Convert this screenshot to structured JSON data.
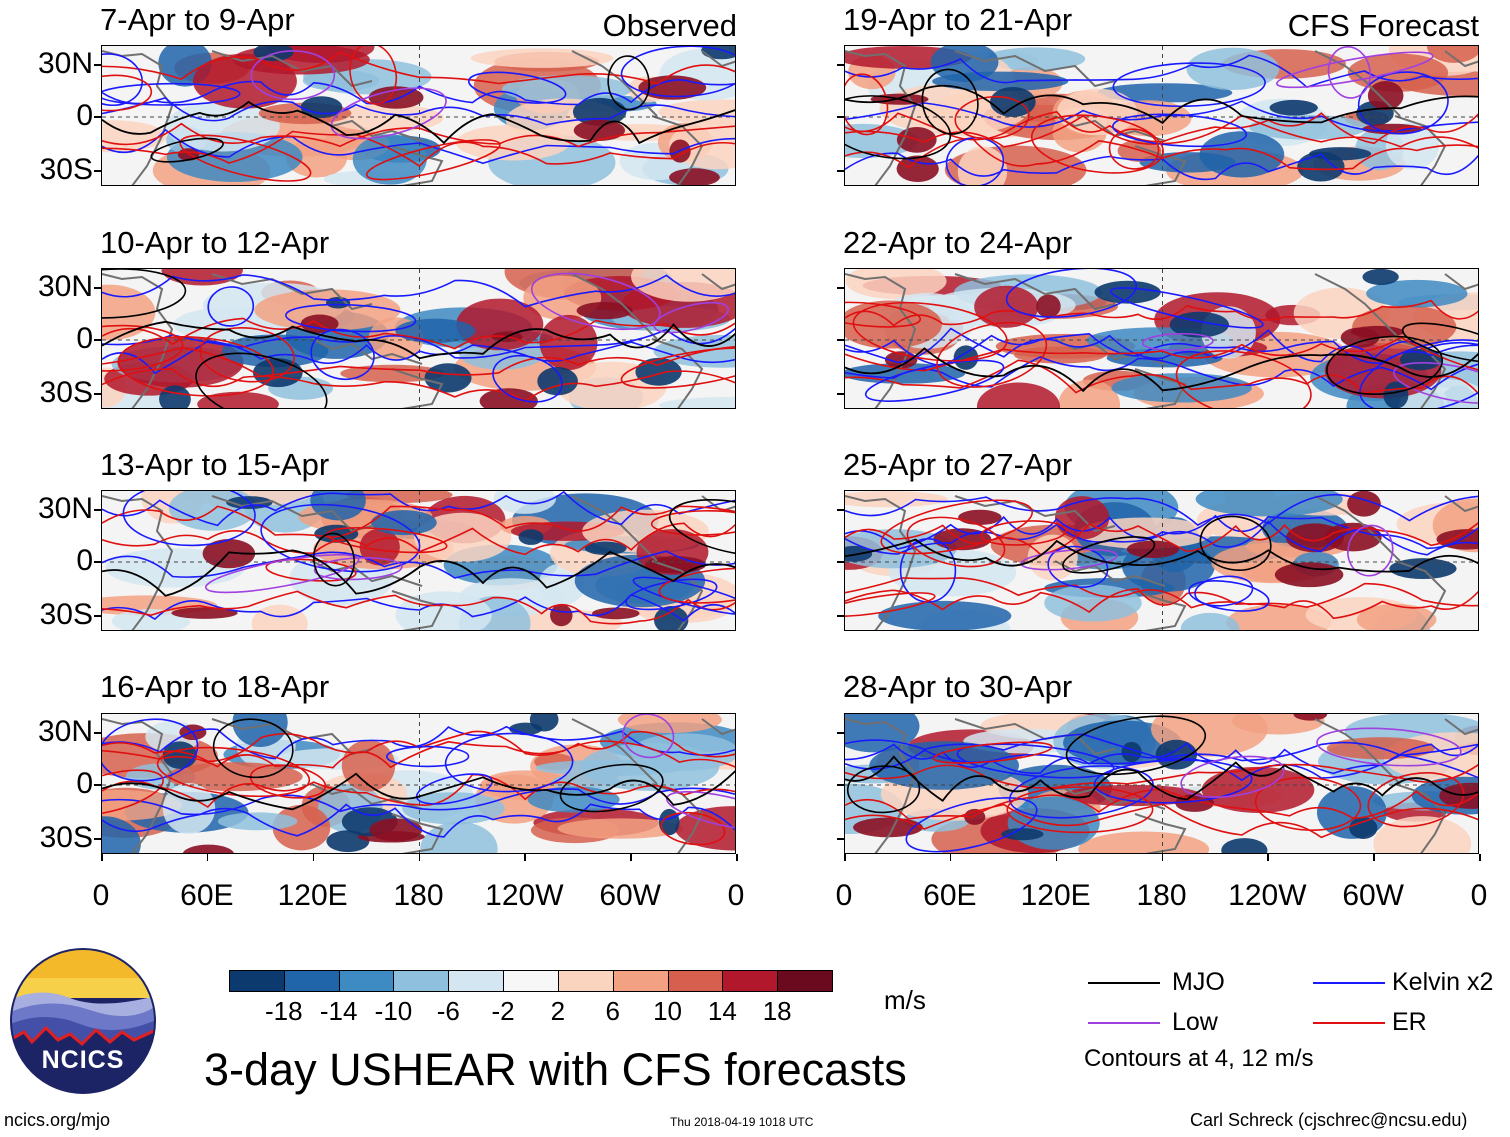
{
  "panels": {
    "left": [
      {
        "title": "7-Apr to 9-Apr",
        "tag": "Observed"
      },
      {
        "title": "10-Apr to 12-Apr",
        "tag": ""
      },
      {
        "title": "13-Apr to 15-Apr",
        "tag": ""
      },
      {
        "title": "16-Apr to 18-Apr",
        "tag": ""
      }
    ],
    "right": [
      {
        "title": "19-Apr to 21-Apr",
        "tag": "CFS Forecast"
      },
      {
        "title": "22-Apr to 24-Apr",
        "tag": ""
      },
      {
        "title": "25-Apr to 27-Apr",
        "tag": ""
      },
      {
        "title": "28-Apr to 30-Apr",
        "tag": ""
      }
    ]
  },
  "lat_labels": [
    "30N",
    "0",
    "30S"
  ],
  "lon_labels": [
    "0",
    "60E",
    "120E",
    "180",
    "120W",
    "60W",
    "0"
  ],
  "colorbar": {
    "colors": [
      "#0d3a6e",
      "#2064aa",
      "#3e8ac2",
      "#8fc0dd",
      "#d3e6f1",
      "#f7f7f7",
      "#fbd4c0",
      "#f2a183",
      "#d6604d",
      "#b2182b",
      "#6b0a1f"
    ],
    "labels": [
      "-18",
      "-14",
      "-10",
      "-6",
      "-2",
      "2",
      "6",
      "10",
      "14",
      "18"
    ],
    "unit": "m/s"
  },
  "legend": {
    "items": [
      {
        "label": "MJO",
        "color": "#000000"
      },
      {
        "label": "Kelvin x2",
        "color": "#1a1aff"
      },
      {
        "label": "Low",
        "color": "#a040e0"
      },
      {
        "label": "ER",
        "color": "#e01010"
      }
    ],
    "note": "Contours at 4, 12 m/s"
  },
  "main_title": "3-day USHEAR with CFS forecasts",
  "logo_text": "NCICS",
  "footer": {
    "url": "ncics.org/mjo",
    "timestamp": "Thu 2018-04-19 1018 UTC",
    "author": "Carl Schreck (cjschrec@ncsu.edu)"
  },
  "colors": {
    "mjo": "#000000",
    "kelvin": "#1a1aff",
    "low": "#a040e0",
    "er": "#e01010",
    "coast": "#707070"
  }
}
